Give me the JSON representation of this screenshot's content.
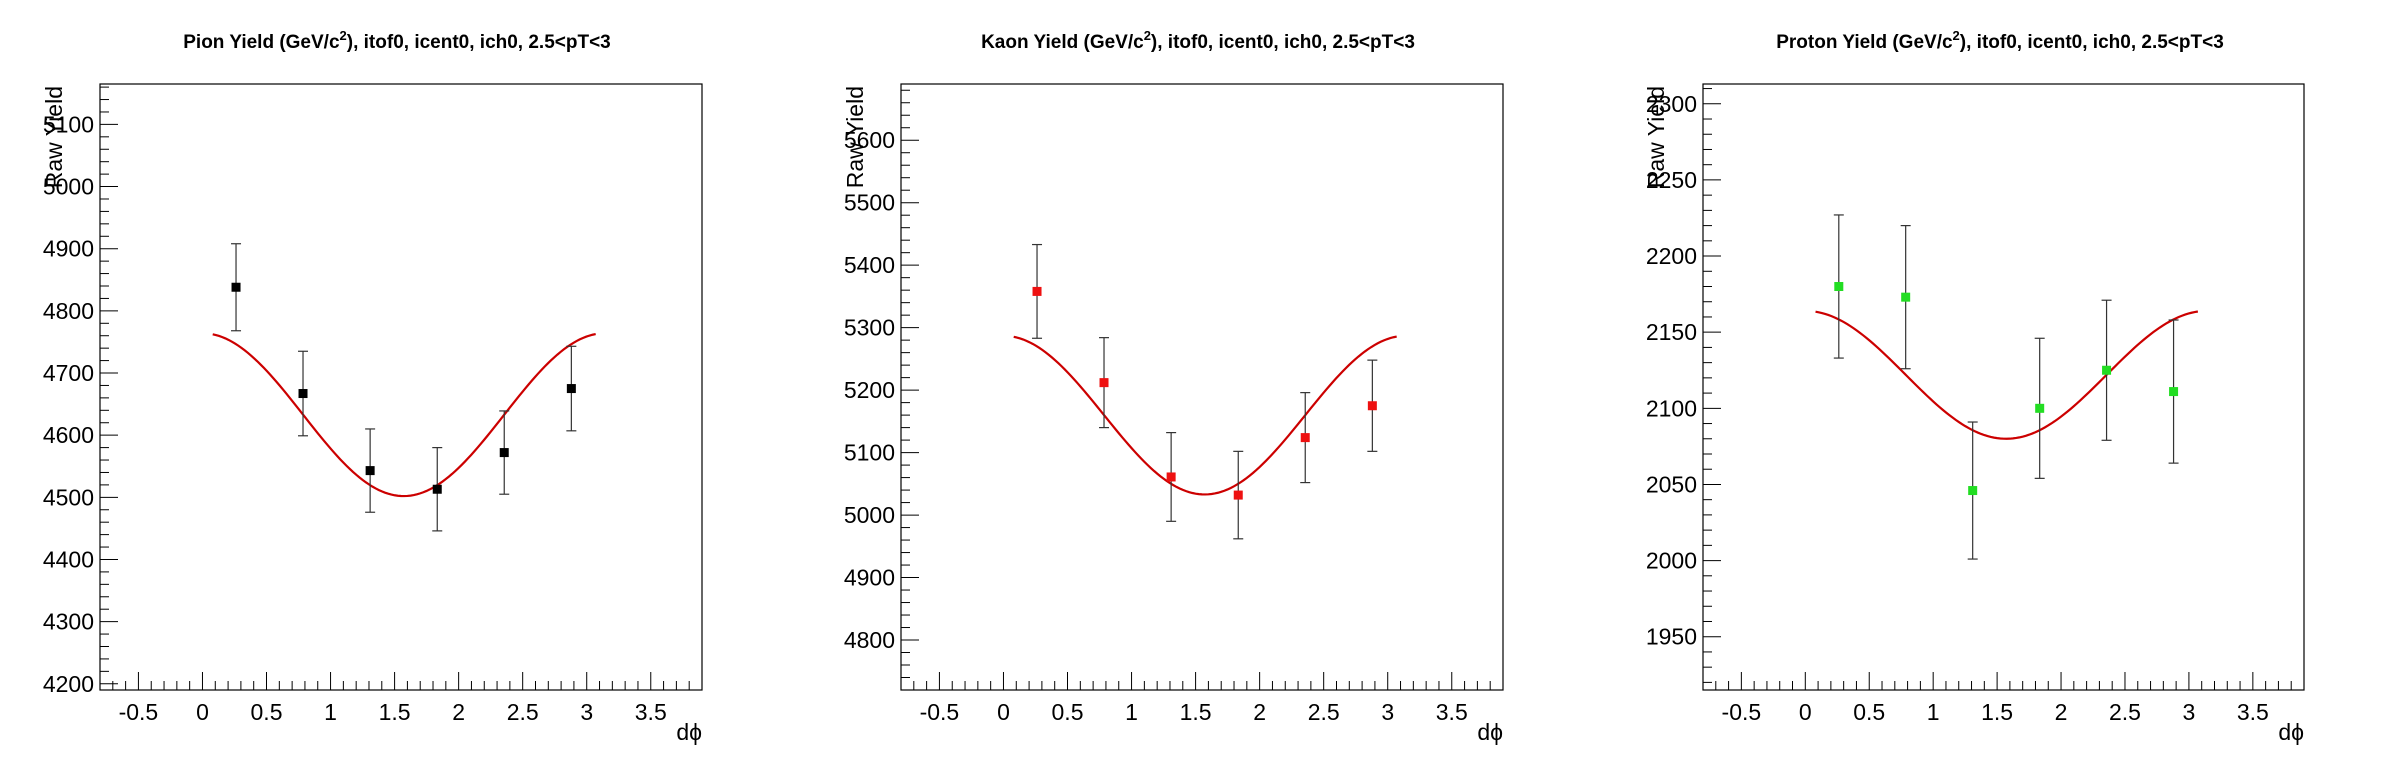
{
  "chart_data": [
    {
      "type": "scatter",
      "title_main": "Pion Yield (GeV/c",
      "title_sup": "2",
      "title_rest": "), itof0, icent0, ich0, 2.5<pT<3",
      "xlabel": "dϕ",
      "ylabel": "Raw Yield",
      "xlim": [
        -0.8,
        3.9
      ],
      "ylim": [
        4190,
        5165
      ],
      "xticks": [
        -0.5,
        0,
        0.5,
        1,
        1.5,
        2,
        2.5,
        3,
        3.5
      ],
      "xtick_labels": [
        "-0.5",
        "0",
        "0.5",
        "1",
        "1.5",
        "2",
        "2.5",
        "3",
        "3.5"
      ],
      "yticks": [
        4200,
        4300,
        4400,
        4500,
        4600,
        4700,
        4800,
        4900,
        5000,
        5100
      ],
      "ytick_labels": [
        "4200",
        "4300",
        "4400",
        "4500",
        "4600",
        "4700",
        "4800",
        "4900",
        "5000",
        "5100"
      ],
      "marker_color": "#000000",
      "fit_color": "#cc0000",
      "points": {
        "x": [
          0.262,
          0.785,
          1.309,
          1.833,
          2.356,
          2.88
        ],
        "y": [
          4838,
          4667,
          4543,
          4513,
          4572,
          4675
        ],
        "err": [
          70,
          68,
          67,
          67,
          67,
          68
        ]
      },
      "fit": {
        "a": 4633,
        "b": 131,
        "xmin": 0.08,
        "xmax": 3.07
      }
    },
    {
      "type": "scatter",
      "title_main": "Kaon Yield (GeV/c",
      "title_sup": "2",
      "title_rest": "), itof0, icent0, ich0, 2.5<pT<3",
      "xlabel": "dϕ",
      "ylabel": "Raw Yield",
      "xlim": [
        -0.8,
        3.9
      ],
      "ylim": [
        4720,
        5690
      ],
      "xticks": [
        -0.5,
        0,
        0.5,
        1,
        1.5,
        2,
        2.5,
        3,
        3.5
      ],
      "xtick_labels": [
        "-0.5",
        "0",
        "0.5",
        "1",
        "1.5",
        "2",
        "2.5",
        "3",
        "3.5"
      ],
      "yticks": [
        4800,
        4900,
        5000,
        5100,
        5200,
        5300,
        5400,
        5500,
        5600
      ],
      "ytick_labels": [
        "4800",
        "4900",
        "5000",
        "5100",
        "5200",
        "5300",
        "5400",
        "5500",
        "5600"
      ],
      "marker_color": "#ee1111",
      "fit_color": "#cc0000",
      "points": {
        "x": [
          0.262,
          0.785,
          1.309,
          1.833,
          2.356,
          2.88
        ],
        "y": [
          5358,
          5212,
          5061,
          5032,
          5124,
          5175
        ],
        "err": [
          75,
          72,
          71,
          70,
          72,
          73
        ]
      },
      "fit": {
        "a": 5160,
        "b": 127,
        "xmin": 0.08,
        "xmax": 3.07
      }
    },
    {
      "type": "scatter",
      "title_main": "Proton Yield (GeV/c",
      "title_sup": "2",
      "title_rest": "), itof0, icent0, ich0, 2.5<pT<3",
      "xlabel": "dϕ",
      "ylabel": "Raw Yield",
      "xlim": [
        -0.8,
        3.9
      ],
      "ylim": [
        1915,
        2313
      ],
      "xticks": [
        -0.5,
        0,
        0.5,
        1,
        1.5,
        2,
        2.5,
        3,
        3.5
      ],
      "xtick_labels": [
        "-0.5",
        "0",
        "0.5",
        "1",
        "1.5",
        "2",
        "2.5",
        "3",
        "3.5"
      ],
      "yticks": [
        1950,
        2000,
        2050,
        2100,
        2150,
        2200,
        2250,
        2300
      ],
      "ytick_labels": [
        "1950",
        "2000",
        "2050",
        "2100",
        "2150",
        "2200",
        "2250",
        "2300"
      ],
      "marker_color": "#22dd22",
      "fit_color": "#cc0000",
      "points": {
        "x": [
          0.262,
          0.785,
          1.309,
          1.833,
          2.356,
          2.88
        ],
        "y": [
          2180,
          2173,
          2046,
          2100,
          2125,
          2111
        ],
        "err": [
          47,
          47,
          45,
          46,
          46,
          47
        ]
      },
      "fit": {
        "a": 2122,
        "b": 42,
        "xmin": 0.08,
        "xmax": 3.07
      }
    }
  ]
}
